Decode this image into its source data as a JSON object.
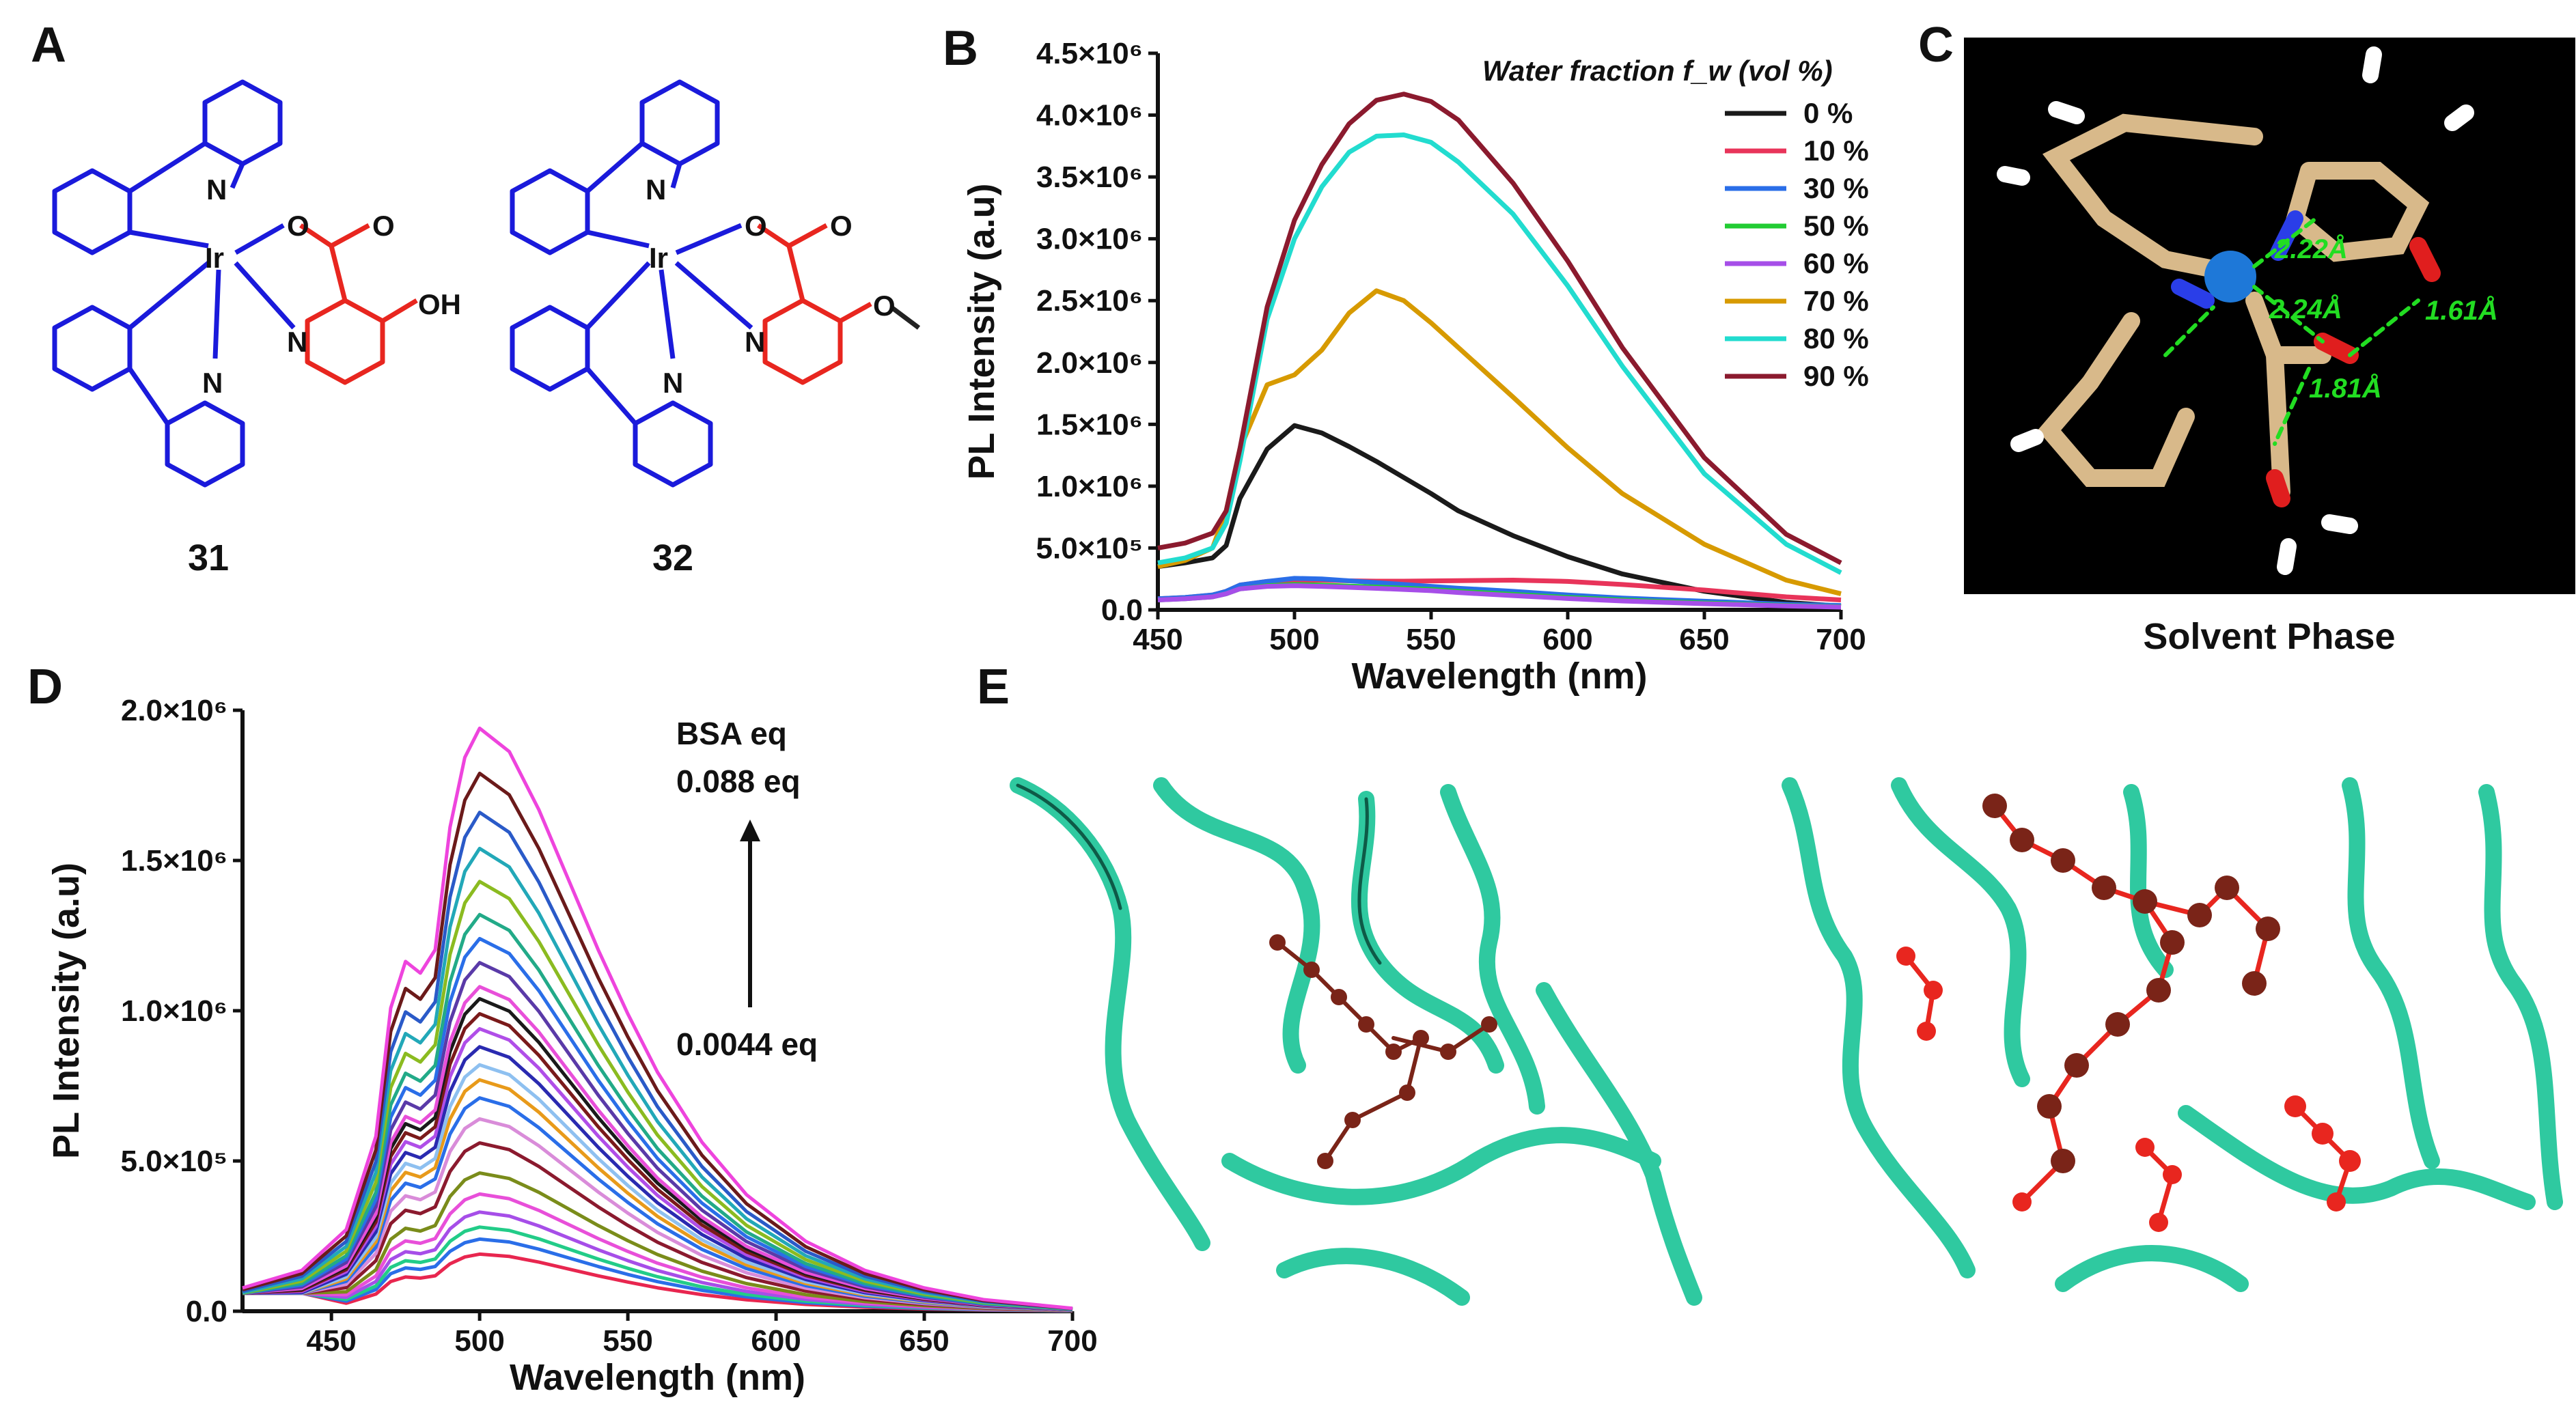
{
  "panels": {
    "A": {
      "letter": "A",
      "compounds": [
        {
          "id": "31",
          "substituent": "OH"
        },
        {
          "id": "32",
          "substituent": ""
        }
      ],
      "atoms": {
        "ir": "Ir",
        "n": "N"
      }
    },
    "B": {
      "letter": "B"
    },
    "C": {
      "letter": "C",
      "caption": "Solvent Phase",
      "distances": [
        "2.22Å",
        "2.24Å",
        "1.61Å",
        "1.81Å"
      ]
    },
    "D": {
      "letter": "D",
      "legend_title": "BSA eq",
      "top_eq": "0.088 eq",
      "bottom_eq": "0.0044 eq"
    },
    "E": {
      "letter": "E"
    }
  },
  "colors": {
    "ligand_blue": "#1a1adb",
    "ligand_red": "#e8261f",
    "protein": "#2fc9a0",
    "ball": "#7a2418",
    "hbond": "#22dd22"
  },
  "chart_data": [
    {
      "panel": "B",
      "type": "line",
      "title": "",
      "xlabel": "Wavelength (nm)",
      "ylabel": "PL Intensity (a.u)",
      "xlim": [
        450,
        700
      ],
      "ylim": [
        0,
        4500000
      ],
      "xticks": [
        "450",
        "500",
        "550",
        "600",
        "650",
        "700"
      ],
      "yticks": [
        "0.0",
        "5.0×10⁵",
        "1.0×10⁶",
        "1.5×10⁶",
        "2.0×10⁶",
        "2.5×10⁶",
        "3.0×10⁶",
        "3.5×10⁶",
        "4.0×10⁶",
        "4.5×10⁶"
      ],
      "legend_title": "Water fraction f_w (vol %)",
      "legend_position": "top-right",
      "x": [
        450,
        460,
        470,
        475,
        480,
        490,
        500,
        510,
        520,
        530,
        540,
        550,
        560,
        580,
        600,
        620,
        650,
        680,
        700
      ],
      "series": [
        {
          "name": "0 %",
          "color": "#1a1a1a",
          "values": [
            350000,
            380000,
            420000,
            520000,
            900000,
            1300000,
            1490000,
            1430000,
            1320000,
            1200000,
            1070000,
            940000,
            800000,
            600000,
            430000,
            290000,
            150000,
            60000,
            30000
          ]
        },
        {
          "name": "10 %",
          "color": "#e8345a",
          "values": [
            90000,
            100000,
            120000,
            150000,
            200000,
            230000,
            240000,
            240000,
            235000,
            232000,
            232000,
            234000,
            236000,
            240000,
            230000,
            205000,
            160000,
            105000,
            80000
          ]
        },
        {
          "name": "30 %",
          "color": "#2a6ee8",
          "values": [
            90000,
            100000,
            120000,
            150000,
            200000,
            230000,
            255000,
            250000,
            235000,
            220000,
            205000,
            190000,
            175000,
            150000,
            120000,
            95000,
            70000,
            45000,
            35000
          ]
        },
        {
          "name": "50 %",
          "color": "#22cc33",
          "values": [
            80000,
            90000,
            105000,
            130000,
            170000,
            195000,
            205000,
            200000,
            192000,
            184000,
            175000,
            165000,
            150000,
            125000,
            100000,
            80000,
            55000,
            35000,
            25000
          ]
        },
        {
          "name": "60 %",
          "color": "#a64ee8",
          "values": [
            80000,
            90000,
            105000,
            130000,
            170000,
            190000,
            195000,
            190000,
            182000,
            174000,
            165000,
            155000,
            140000,
            115000,
            92000,
            72000,
            50000,
            32000,
            22000
          ]
        },
        {
          "name": "70 %",
          "color": "#d79a00",
          "values": [
            350000,
            400000,
            500000,
            800000,
            1300000,
            1820000,
            1900000,
            2100000,
            2400000,
            2580000,
            2500000,
            2320000,
            2120000,
            1720000,
            1310000,
            940000,
            530000,
            240000,
            130000
          ]
        },
        {
          "name": "80 %",
          "color": "#22dccf",
          "values": [
            380000,
            420000,
            500000,
            700000,
            1200000,
            2350000,
            3000000,
            3420000,
            3700000,
            3830000,
            3840000,
            3780000,
            3620000,
            3200000,
            2620000,
            1970000,
            1100000,
            530000,
            300000
          ]
        },
        {
          "name": "90 %",
          "color": "#8b1a2e",
          "values": [
            500000,
            540000,
            620000,
            800000,
            1300000,
            2450000,
            3150000,
            3600000,
            3930000,
            4120000,
            4170000,
            4110000,
            3960000,
            3450000,
            2820000,
            2120000,
            1230000,
            610000,
            380000
          ]
        }
      ]
    },
    {
      "panel": "D",
      "type": "line",
      "title": "",
      "xlabel": "Wavelength (nm)",
      "ylabel": "PL Intensity (a.u)",
      "xlim": [
        420,
        700
      ],
      "ylim": [
        0,
        2000000
      ],
      "xticks": [
        "450",
        "500",
        "550",
        "600",
        "650",
        "700"
      ],
      "yticks": [
        "0.0",
        "5.0×10⁵",
        "1.0×10⁶",
        "1.5×10⁶",
        "2.0×10⁶"
      ],
      "peak_x": 500,
      "peaks": [
        190000,
        240000,
        280000,
        330000,
        390000,
        460000,
        560000,
        640000,
        710000,
        770000,
        820000,
        880000,
        940000,
        990000,
        1040000,
        1080000,
        1160000,
        1240000,
        1320000,
        1430000,
        1540000,
        1660000,
        1790000,
        1940000
      ],
      "shape_x": [
        420,
        440,
        455,
        465,
        470,
        475,
        480,
        485,
        490,
        495,
        500,
        510,
        520,
        530,
        540,
        550,
        560,
        575,
        590,
        610,
        630,
        650,
        670,
        690,
        700
      ],
      "shape_norm": [
        0.04,
        0.07,
        0.14,
        0.3,
        0.52,
        0.6,
        0.58,
        0.62,
        0.83,
        0.95,
        1.0,
        0.96,
        0.86,
        0.74,
        0.62,
        0.51,
        0.41,
        0.29,
        0.2,
        0.12,
        0.07,
        0.04,
        0.02,
        0.01,
        0.005
      ],
      "colors": [
        "#e8264f",
        "#2a6ee8",
        "#22cc88",
        "#a64ee8",
        "#e84fd9",
        "#7a8c1a",
        "#8b1a2e",
        "#d98cd9",
        "#2a6ee8",
        "#e89a1a",
        "#8ec0f0",
        "#2a2ab0",
        "#b04ee8",
        "#7a1a1a",
        "#1a1a1a",
        "#e84fd9",
        "#5a3aa8",
        "#2a6ee8",
        "#22aa88",
        "#8bbb20",
        "#22a8b8",
        "#2a5ac8",
        "#6b1a1a",
        "#ee44dd"
      ]
    }
  ]
}
